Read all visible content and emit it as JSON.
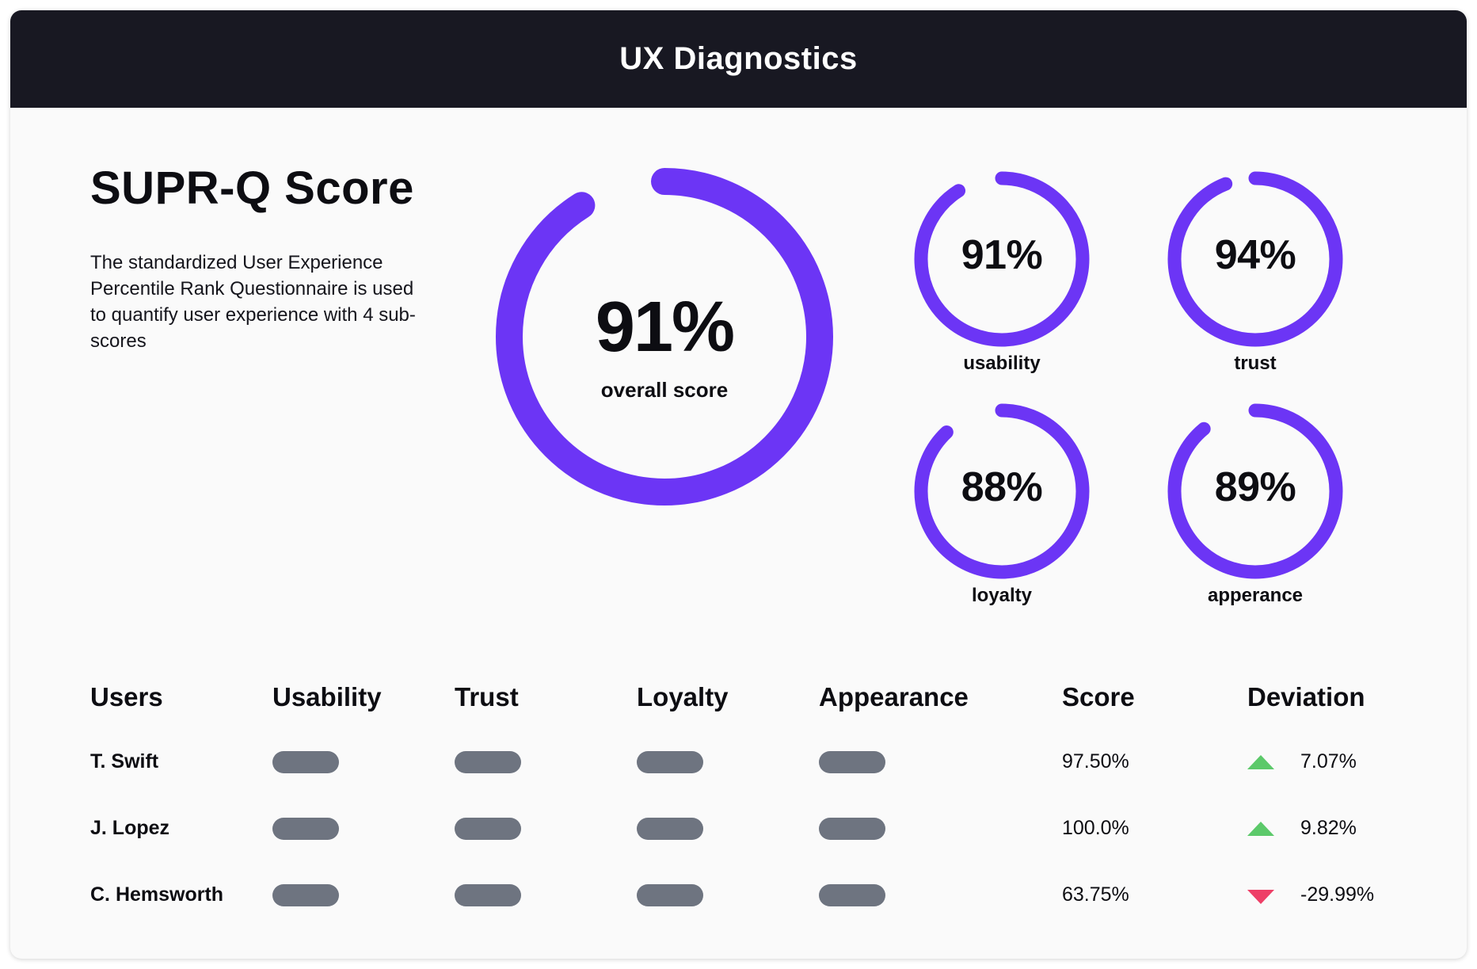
{
  "header": {
    "title": "UX Diagnostics"
  },
  "summary": {
    "title": "SUPR-Q Score",
    "description": "The standardized User Experience Percentile Rank Questionnaire is used to quantify user experience with 4 sub-scores"
  },
  "colors": {
    "accent": "#6c35f5",
    "header_bg": "#181822",
    "up": "#5cc96a",
    "down": "#ee3f67",
    "pill": "#6e7480"
  },
  "overall": {
    "value": "91%",
    "label": "overall score",
    "fraction": 0.91
  },
  "subscores": [
    {
      "key": "usability",
      "value": "91%",
      "label": "usability",
      "fraction": 0.91
    },
    {
      "key": "trust",
      "value": "94%",
      "label": "trust",
      "fraction": 0.94
    },
    {
      "key": "loyalty",
      "value": "88%",
      "label": "loyalty",
      "fraction": 0.88
    },
    {
      "key": "appearance",
      "value": "89%",
      "label": "apperance",
      "fraction": 0.89
    }
  ],
  "table": {
    "headers": [
      "Users",
      "Usability",
      "Trust",
      "Loyalty",
      "Appearance",
      "Score",
      "Deviation"
    ],
    "rows": [
      {
        "user": "T. Swift",
        "score": "97.50%",
        "deviation": "7.07%",
        "trend": "up"
      },
      {
        "user": "J. Lopez",
        "score": "100.0%",
        "deviation": "9.82%",
        "trend": "up"
      },
      {
        "user": "C. Hemsworth",
        "score": "63.75%",
        "deviation": "-29.99%",
        "trend": "down"
      }
    ]
  }
}
